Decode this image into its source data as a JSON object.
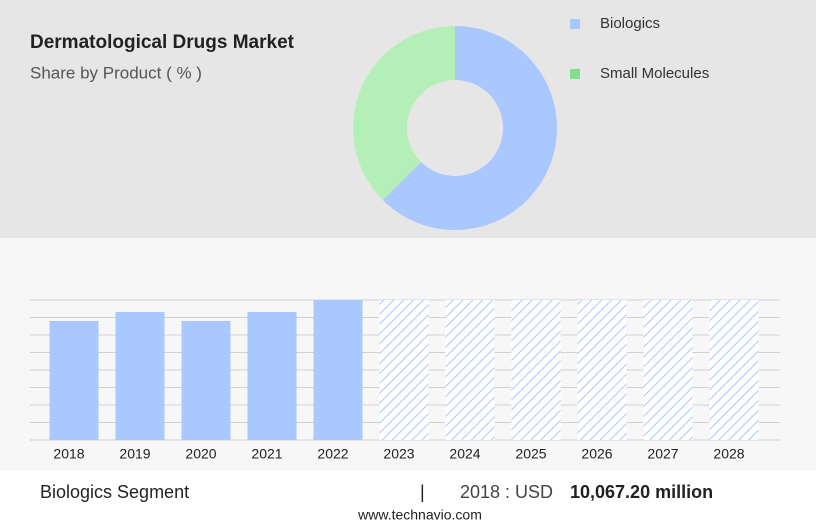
{
  "chart_data": [
    {
      "type": "pie",
      "title": "Dermatological Drugs Market",
      "subtitle": "Share by Product ( % )",
      "donut": true,
      "categories": [
        "Biologics",
        "Small Molecules"
      ],
      "values": [
        62.5,
        37.5
      ],
      "colors": [
        "#a8c8ff",
        "#b5efb8"
      ],
      "legend_colors": [
        "#a8c8ff",
        "#7ee08a"
      ],
      "legend": "right"
    },
    {
      "type": "bar",
      "categories": [
        "2018",
        "2019",
        "2020",
        "2021",
        "2022",
        "2023",
        "2024",
        "2025",
        "2026",
        "2027",
        "2028"
      ],
      "values": [
        10067.2,
        10830,
        10067.2,
        10830,
        11840,
        null,
        null,
        null,
        null,
        null,
        null
      ],
      "color": "#a8c8ff",
      "ylim": [
        0,
        11840
      ],
      "grid": true,
      "segment": "Biologics Segment",
      "separator": "|",
      "note_prefix": "2018 : USD",
      "note_value": "10,067.20 million",
      "source": "www.technavio.com"
    }
  ]
}
